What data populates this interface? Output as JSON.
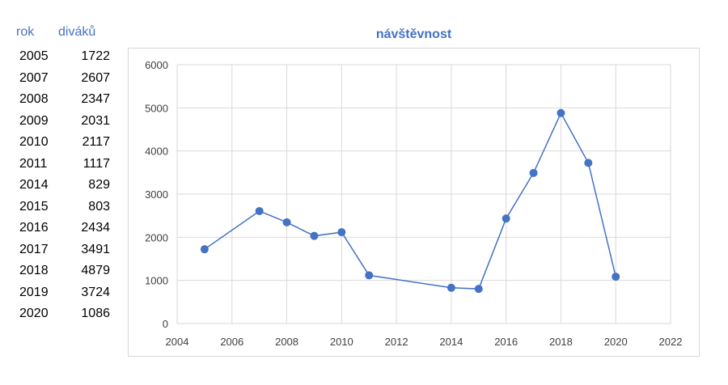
{
  "table": {
    "headers": {
      "year": "rok",
      "value": "diváků"
    },
    "rows": [
      {
        "year": "2005",
        "value": "1722"
      },
      {
        "year": "2007",
        "value": "2607"
      },
      {
        "year": "2008",
        "value": "2347"
      },
      {
        "year": "2009",
        "value": "2031"
      },
      {
        "year": "2010",
        "value": "2117"
      },
      {
        "year": "2011",
        "value": "1117"
      },
      {
        "year": "2014",
        "value": "829"
      },
      {
        "year": "2015",
        "value": "803"
      },
      {
        "year": "2016",
        "value": "2434"
      },
      {
        "year": "2017",
        "value": "3491"
      },
      {
        "year": "2018",
        "value": "4879"
      },
      {
        "year": "2019",
        "value": "3724"
      },
      {
        "year": "2020",
        "value": "1086"
      }
    ]
  },
  "chart_data": {
    "type": "line",
    "title": "návštěvnost",
    "xlabel": "",
    "ylabel": "",
    "xlim": [
      2004,
      2022
    ],
    "ylim": [
      0,
      6000
    ],
    "x_ticks": [
      2004,
      2006,
      2008,
      2010,
      2012,
      2014,
      2016,
      2018,
      2020,
      2022
    ],
    "y_ticks": [
      0,
      1000,
      2000,
      3000,
      4000,
      5000,
      6000
    ],
    "grid": true,
    "series": [
      {
        "color": "#4472C4",
        "x": [
          2005,
          2007,
          2008,
          2009,
          2010,
          2011,
          2014,
          2015,
          2016,
          2017,
          2018,
          2019,
          2020
        ],
        "y": [
          1722,
          2607,
          2347,
          2031,
          2117,
          1117,
          829,
          803,
          2434,
          3491,
          4879,
          3724,
          1086
        ]
      }
    ]
  }
}
